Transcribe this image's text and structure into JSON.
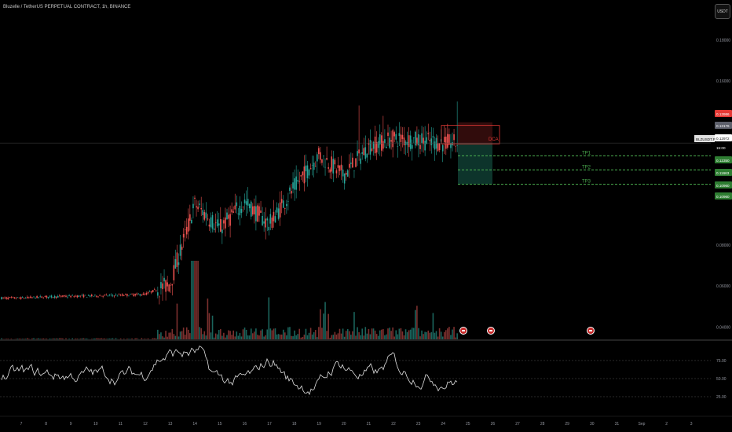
{
  "header": {
    "symbol_title": "Bluzelle / TetherUS PERPETUAL CONTRACT, 1h, BINANCE",
    "currency_button": "USDT"
  },
  "price_axis_labels": [
    "0.18000",
    "0.16000",
    "0.08000",
    "0.06000",
    "0.04000"
  ],
  "price_tags": [
    {
      "value": "0.13986",
      "color": "#e53935"
    },
    {
      "value": "0.13176",
      "color": "#5d606b"
    },
    {
      "value": "0.12972",
      "color": "#ffffff",
      "text_color": "#111111"
    },
    {
      "value": "15:00",
      "color": "#000000"
    },
    {
      "value": "0.12350",
      "color": "#2e7d32"
    },
    {
      "value": "0.11663",
      "color": "#2e7d32"
    },
    {
      "value": "0.10960",
      "color": "#2e7d32"
    },
    {
      "value": "0.10960",
      "color": "#2e7d32"
    }
  ],
  "symbol_tag": "BLZUSDT.P",
  "annotations": {
    "dca_label": "DCA",
    "tp_labels": [
      "TP1",
      "TP2",
      "TP3"
    ]
  },
  "indicator_axis_labels": [
    "75.00",
    "50.00",
    "25.00"
  ],
  "x_axis_labels": [
    "7",
    "8",
    "9",
    "10",
    "11",
    "12",
    "13",
    "14",
    "15",
    "16",
    "17",
    "18",
    "19",
    "20",
    "21",
    "22",
    "23",
    "24",
    "25",
    "26",
    "27",
    "28",
    "29",
    "30",
    "31",
    "Sep",
    "2",
    "3"
  ],
  "colors": {
    "up": "#26a69a",
    "down": "#ef5350",
    "tp_line": "#4caf50",
    "dca": "#e53935",
    "background": "#000000"
  },
  "chart_data": {
    "type": "candlestick",
    "price_axis": {
      "min": 0.034,
      "max": 0.188
    },
    "entry_price": 0.12972,
    "dca_zone": [
      0.13176,
      0.13986
    ],
    "take_profits": [
      0.1235,
      0.11663,
      0.1096
    ],
    "stop_zone_low": 0.1096,
    "price_path_by_day": [
      {
        "day": "7",
        "close": 0.0541
      },
      {
        "day": "8",
        "close": 0.0547
      },
      {
        "day": "9",
        "close": 0.055
      },
      {
        "day": "10",
        "close": 0.0552
      },
      {
        "day": "11",
        "close": 0.0555
      },
      {
        "day": "12",
        "close": 0.056
      },
      {
        "day": "13",
        "close": 0.061
      },
      {
        "day": "14",
        "close": 0.1
      },
      {
        "day": "15",
        "close": 0.088
      },
      {
        "day": "16",
        "close": 0.101
      },
      {
        "day": "17",
        "close": 0.09
      },
      {
        "day": "18",
        "close": 0.108
      },
      {
        "day": "19",
        "close": 0.124
      },
      {
        "day": "20",
        "close": 0.114
      },
      {
        "day": "21",
        "close": 0.128
      },
      {
        "day": "22",
        "close": 0.132
      },
      {
        "day": "23",
        "close": 0.131
      },
      {
        "day": "24",
        "close": 0.1297
      }
    ],
    "indicator": {
      "type": "line",
      "range": [
        0,
        100
      ],
      "levels": [
        75,
        50,
        25
      ]
    }
  }
}
